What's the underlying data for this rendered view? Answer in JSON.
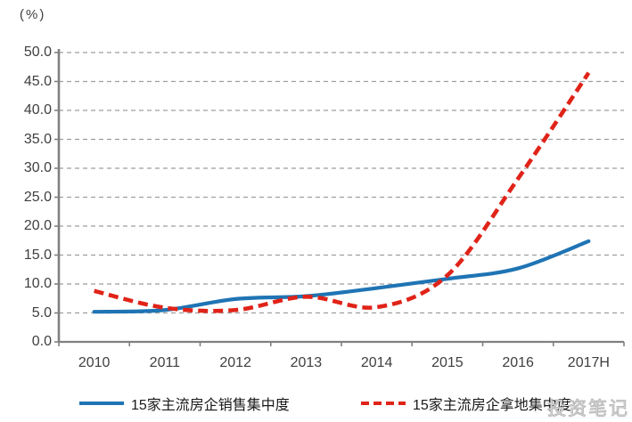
{
  "chart_data": {
    "type": "line",
    "unit_label": "(%)",
    "title": "",
    "xlabel": "",
    "ylabel": "(%)",
    "categories": [
      "2010",
      "2011",
      "2012",
      "2013",
      "2014",
      "2015",
      "2016",
      "2017H"
    ],
    "series": [
      {
        "name": "15家主流房企销售集中度",
        "style": "solid",
        "color": "#1f74b4",
        "values": [
          5.2,
          5.5,
          7.4,
          7.9,
          9.3,
          10.9,
          12.7,
          17.4
        ]
      },
      {
        "name": "15家主流房企拿地集中度",
        "style": "dashed",
        "color": "#e02318",
        "values": [
          8.8,
          5.9,
          5.5,
          7.8,
          6.0,
          11.5,
          28.2,
          46.5
        ]
      }
    ],
    "ylim": [
      0,
      50
    ],
    "y_step": 5,
    "y_ticks": [
      "0.0",
      "5.0",
      "10.0",
      "15.0",
      "20.0",
      "25.0",
      "30.0",
      "35.0",
      "40.0",
      "45.0",
      "50.0"
    ],
    "grid": "horizontal-dashed",
    "legend_position": "bottom"
  },
  "watermark": {
    "text": "投资笔记"
  },
  "colors": {
    "grid": "#9e9e9e",
    "axis": "#808080",
    "tick_text": "#3f3f3f",
    "background": "#ffffff",
    "watermark": "#bdbdbd"
  }
}
